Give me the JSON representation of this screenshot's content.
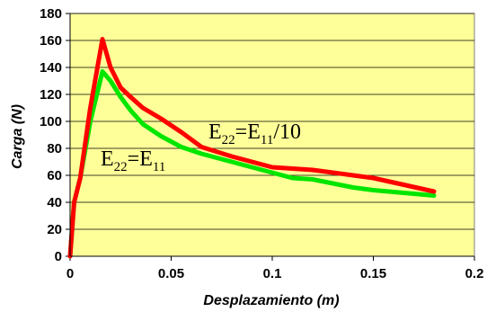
{
  "chart_data": {
    "type": "line",
    "xlabel": "Desplazamiento (m)",
    "ylabel": "Carga (N)",
    "xlim": [
      0,
      0.2
    ],
    "ylim": [
      0,
      180
    ],
    "x_ticks": [
      0,
      0.05,
      0.1,
      0.15,
      0.2
    ],
    "x_tick_labels": [
      "0",
      "0.05",
      "0.1",
      "0.15",
      "0.2"
    ],
    "y_ticks": [
      0,
      20,
      40,
      60,
      80,
      100,
      120,
      140,
      160,
      180
    ],
    "y_tick_labels": [
      "0",
      "20",
      "40",
      "60",
      "80",
      "100",
      "120",
      "140",
      "160",
      "180"
    ],
    "grid": "horizontal",
    "plot_background": "#FFFF99",
    "series": [
      {
        "color": "#00E600",
        "x": [
          0,
          0.002,
          0.005,
          0.01,
          0.016,
          0.02,
          0.025,
          0.03,
          0.036,
          0.045,
          0.055,
          0.065,
          0.08,
          0.1,
          0.11,
          0.12,
          0.14,
          0.15,
          0.165,
          0.18
        ],
        "y": [
          0,
          40,
          58,
          100,
          137,
          130,
          118,
          108,
          98,
          89,
          81,
          76,
          70,
          62,
          58,
          57,
          51,
          49,
          47,
          45
        ]
      },
      {
        "color": "#FF0000",
        "x": [
          0,
          0.002,
          0.005,
          0.01,
          0.016,
          0.02,
          0.025,
          0.03,
          0.036,
          0.045,
          0.055,
          0.065,
          0.08,
          0.1,
          0.11,
          0.12,
          0.14,
          0.15,
          0.165,
          0.18
        ],
        "y": [
          0,
          40,
          58,
          110,
          161,
          140,
          125,
          118,
          110,
          102,
          92,
          81,
          74,
          66,
          65,
          64,
          60,
          58,
          53,
          48
        ]
      }
    ],
    "annotations": [
      {
        "main": "E",
        "sub1": "22",
        "eq": "=E",
        "sub2": "11",
        "tail": "/10"
      },
      {
        "main": "E",
        "sub1": "22",
        "eq": "=E",
        "sub2": "11",
        "tail": ""
      }
    ]
  }
}
